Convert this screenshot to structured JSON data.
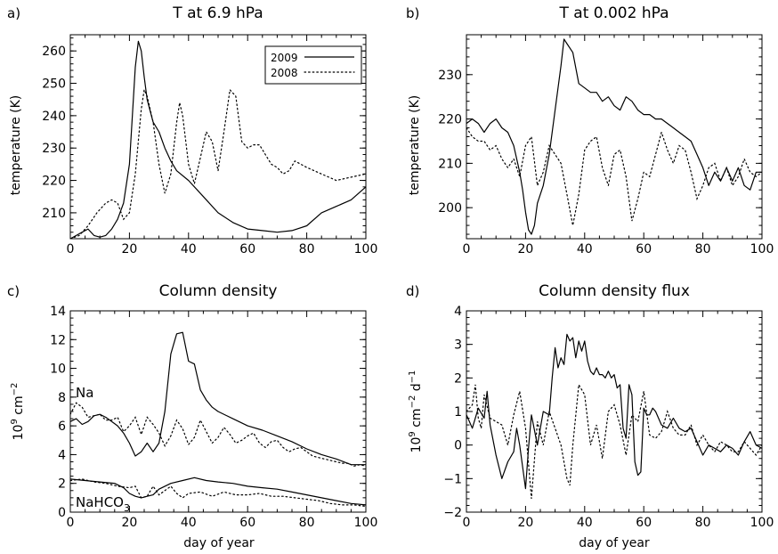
{
  "panels": [
    {
      "label": "a)",
      "title": "T at 6.9 hPa",
      "xlabel": "",
      "ylabel": "temperature (K)",
      "ylabel_sup": "",
      "ylabel_rest": "",
      "xticks": [
        "0",
        "20",
        "40",
        "60",
        "80",
        "100"
      ],
      "yticks": [
        "210",
        "220",
        "230",
        "240",
        "250",
        "260"
      ]
    },
    {
      "label": "b)",
      "title": "T at 0.002 hPa",
      "xlabel": "",
      "ylabel": "temperature (K)",
      "ylabel_sup": "",
      "ylabel_rest": "",
      "xticks": [
        "0",
        "20",
        "40",
        "60",
        "80",
        "100"
      ],
      "yticks": [
        "200",
        "210",
        "220",
        "230"
      ]
    },
    {
      "label": "c)",
      "title": "Column density",
      "xlabel": "day of year",
      "ylabel": "10",
      "ylabel_sup": "9",
      "ylabel_rest": " cm",
      "ylabel_sup2": "−2",
      "xticks": [
        "0",
        "20",
        "40",
        "60",
        "80",
        "100"
      ],
      "yticks": [
        "0",
        "2",
        "4",
        "6",
        "8",
        "10",
        "12",
        "14"
      ],
      "annotations": [
        {
          "text": "Na"
        },
        {
          "text": "NaHCO",
          "sub": "3"
        }
      ]
    },
    {
      "label": "d)",
      "title": "Column density flux",
      "xlabel": "day of year",
      "ylabel": "10",
      "ylabel_sup": "9",
      "ylabel_rest": " cm",
      "ylabel_sup2": "−2",
      "ylabel_rest2": " d",
      "ylabel_sup3": "−1",
      "xticks": [
        "0",
        "20",
        "40",
        "60",
        "80",
        "100"
      ],
      "yticks": [
        "−2",
        "−1",
        "0",
        "1",
        "2",
        "3",
        "4"
      ]
    }
  ],
  "legend": {
    "entries": [
      {
        "name": "2009",
        "style": "solid"
      },
      {
        "name": "2008",
        "style": "dotted"
      }
    ],
    "position": "top-right of panel a"
  },
  "chart_data": [
    {
      "type": "line",
      "title": "T at 6.9 hPa",
      "ylabel": "temperature (K)",
      "xlim": [
        0,
        100
      ],
      "ylim": [
        202,
        265
      ],
      "series": [
        {
          "name": "2009",
          "style": "solid",
          "x": [
            0,
            2,
            4,
            6,
            8,
            10,
            12,
            14,
            16,
            18,
            20,
            21,
            22,
            23,
            24,
            25,
            26,
            28,
            30,
            32,
            34,
            36,
            40,
            45,
            50,
            55,
            60,
            65,
            70,
            75,
            80,
            85,
            90,
            95,
            100
          ],
          "y": [
            202,
            203,
            204,
            205,
            203,
            202.5,
            203,
            205,
            208,
            213,
            225,
            240,
            255,
            263,
            260,
            252,
            245,
            238,
            235,
            230,
            226,
            223,
            220,
            215,
            210,
            207,
            205,
            204.5,
            204,
            204.5,
            206,
            210,
            212,
            214,
            218
          ]
        },
        {
          "name": "2008",
          "style": "dotted",
          "x": [
            0,
            3,
            6,
            9,
            12,
            14,
            16,
            18,
            20,
            22,
            24,
            25,
            26,
            28,
            30,
            32,
            34,
            36,
            37,
            38,
            40,
            42,
            44,
            46,
            48,
            50,
            52,
            54,
            56,
            58,
            60,
            62,
            64,
            66,
            68,
            70,
            72,
            74,
            76,
            78,
            80,
            85,
            90,
            95,
            100
          ],
          "y": [
            202,
            203,
            206,
            210,
            213,
            214,
            213,
            208,
            210,
            222,
            242,
            248,
            246,
            238,
            225,
            216,
            222,
            238,
            244,
            240,
            225,
            219,
            227,
            235,
            232,
            223,
            235,
            248,
            246,
            232,
            230,
            231,
            231,
            228,
            225,
            224,
            222,
            223,
            226,
            225,
            224,
            222,
            220,
            221,
            222
          ]
        }
      ]
    },
    {
      "type": "line",
      "title": "T at 0.002 hPa",
      "ylabel": "temperature (K)",
      "xlim": [
        0,
        100
      ],
      "ylim": [
        193,
        239
      ],
      "series": [
        {
          "name": "2009",
          "style": "solid",
          "x": [
            0,
            2,
            4,
            6,
            8,
            10,
            12,
            14,
            16,
            18,
            19,
            20,
            21,
            22,
            23,
            24,
            26,
            28,
            30,
            32,
            33,
            34,
            36,
            38,
            40,
            42,
            44,
            46,
            48,
            50,
            52,
            54,
            56,
            58,
            60,
            62,
            64,
            66,
            68,
            70,
            72,
            74,
            76,
            78,
            80,
            82,
            84,
            86,
            88,
            90,
            92,
            94,
            96,
            98,
            100
          ],
          "y": [
            219,
            220,
            219,
            217,
            219,
            220,
            218,
            217,
            214,
            208,
            204,
            199,
            195,
            194,
            196,
            201,
            205,
            212,
            222,
            232,
            238,
            237,
            235,
            228,
            227,
            226,
            226,
            224,
            225,
            223,
            222,
            225,
            224,
            222,
            221,
            221,
            220,
            220,
            219,
            218,
            217,
            216,
            215,
            212,
            209,
            205,
            208,
            206,
            209,
            206,
            209,
            205,
            204,
            208,
            208
          ]
        },
        {
          "name": "2008",
          "style": "dotted",
          "x": [
            0,
            2,
            4,
            6,
            8,
            10,
            12,
            14,
            16,
            18,
            20,
            22,
            24,
            26,
            28,
            30,
            32,
            34,
            36,
            38,
            40,
            42,
            44,
            46,
            48,
            50,
            52,
            54,
            56,
            58,
            60,
            62,
            64,
            66,
            68,
            70,
            72,
            74,
            76,
            78,
            80,
            82,
            84,
            86,
            88,
            90,
            92,
            94,
            96,
            98,
            100
          ],
          "y": [
            218,
            216,
            215,
            215,
            213,
            214,
            211,
            209,
            211,
            207,
            214,
            216,
            205,
            208,
            214,
            212,
            210,
            203,
            196,
            203,
            213,
            215,
            216,
            209,
            205,
            212,
            213,
            207,
            197,
            202,
            208,
            207,
            212,
            217,
            213,
            210,
            214,
            213,
            208,
            202,
            205,
            209,
            210,
            206,
            209,
            205,
            207,
            211,
            208,
            207,
            208
          ]
        }
      ]
    },
    {
      "type": "line",
      "title": "Column density",
      "ylabel": "10^9 cm^-2",
      "xlabel": "day of year",
      "xlim": [
        0,
        100
      ],
      "ylim": [
        0,
        14
      ],
      "series": [
        {
          "name": "Na 2009",
          "style": "solid",
          "x": [
            0,
            2,
            4,
            6,
            8,
            10,
            12,
            14,
            16,
            18,
            20,
            22,
            24,
            26,
            28,
            30,
            32,
            34,
            36,
            38,
            40,
            42,
            44,
            46,
            48,
            50,
            55,
            60,
            65,
            70,
            75,
            80,
            85,
            90,
            95,
            100
          ],
          "y": [
            6.3,
            6.5,
            6.1,
            6.3,
            6.7,
            6.8,
            6.6,
            6.3,
            6.0,
            5.5,
            4.8,
            3.9,
            4.2,
            4.8,
            4.2,
            4.8,
            7.0,
            11.0,
            12.4,
            12.5,
            10.5,
            10.3,
            8.5,
            7.8,
            7.3,
            7.0,
            6.5,
            6.0,
            5.7,
            5.3,
            4.9,
            4.4,
            4.0,
            3.7,
            3.3,
            3.3
          ]
        },
        {
          "name": "Na 2008",
          "style": "dotted",
          "x": [
            0,
            2,
            4,
            6,
            8,
            10,
            12,
            14,
            16,
            18,
            20,
            22,
            24,
            26,
            28,
            30,
            32,
            34,
            36,
            38,
            40,
            42,
            44,
            46,
            48,
            50,
            52,
            54,
            56,
            58,
            60,
            62,
            64,
            66,
            68,
            70,
            72,
            74,
            76,
            78,
            80,
            82,
            84,
            86,
            88,
            90,
            92,
            94,
            96,
            98,
            100
          ],
          "y": [
            6.8,
            7.6,
            7.3,
            6.6,
            6.7,
            6.8,
            6.4,
            6.4,
            6.6,
            5.6,
            6.0,
            6.6,
            5.4,
            6.6,
            6.1,
            5.5,
            4.6,
            5.3,
            6.4,
            5.8,
            4.7,
            5.2,
            6.4,
            5.6,
            4.8,
            5.2,
            5.9,
            5.4,
            4.8,
            5.0,
            5.3,
            5.5,
            4.8,
            4.5,
            4.9,
            5.0,
            4.5,
            4.2,
            4.4,
            4.5,
            4.2,
            3.9,
            3.8,
            3.7,
            3.6,
            3.5,
            3.4,
            3.4,
            3.2,
            3.3,
            3.2
          ]
        },
        {
          "name": "NaHCO3 2009",
          "style": "solid",
          "x": [
            0,
            5,
            10,
            15,
            18,
            20,
            22,
            24,
            26,
            28,
            30,
            34,
            38,
            42,
            46,
            50,
            55,
            60,
            65,
            70,
            75,
            80,
            85,
            90,
            95,
            100
          ],
          "y": [
            2.3,
            2.2,
            2.1,
            2.0,
            1.7,
            1.3,
            1.1,
            1.0,
            1.1,
            1.2,
            1.6,
            2.0,
            2.2,
            2.4,
            2.2,
            2.1,
            2.0,
            1.8,
            1.7,
            1.6,
            1.4,
            1.2,
            1.0,
            0.8,
            0.6,
            0.5
          ]
        },
        {
          "name": "NaHCO3 2008",
          "style": "dotted",
          "x": [
            0,
            4,
            8,
            12,
            16,
            20,
            22,
            24,
            26,
            28,
            30,
            32,
            34,
            36,
            38,
            40,
            44,
            48,
            52,
            56,
            60,
            64,
            68,
            72,
            76,
            80,
            84,
            88,
            92,
            96,
            100
          ],
          "y": [
            2.2,
            2.3,
            2.1,
            2.0,
            1.8,
            1.7,
            1.8,
            1.0,
            1.1,
            1.8,
            1.2,
            1.5,
            1.8,
            1.3,
            1.0,
            1.3,
            1.4,
            1.1,
            1.4,
            1.2,
            1.2,
            1.3,
            1.1,
            1.1,
            1.0,
            0.9,
            0.8,
            0.6,
            0.5,
            0.5,
            0.4
          ]
        }
      ]
    },
    {
      "type": "line",
      "title": "Column density flux",
      "ylabel": "10^9 cm^-2 d^-1",
      "xlabel": "day of year",
      "xlim": [
        0,
        100
      ],
      "ylim": [
        -2,
        4
      ],
      "series": [
        {
          "name": "2009",
          "style": "solid",
          "x": [
            0,
            2,
            4,
            6,
            7,
            8,
            10,
            12,
            14,
            16,
            17,
            18,
            20,
            21,
            22,
            24,
            26,
            28,
            29,
            30,
            31,
            32,
            33,
            34,
            35,
            36,
            37,
            38,
            39,
            40,
            41,
            42,
            43,
            44,
            45,
            46,
            47,
            48,
            49,
            50,
            51,
            52,
            53,
            54,
            55,
            56,
            57,
            58,
            59,
            60,
            61,
            62,
            63,
            64,
            66,
            68,
            70,
            72,
            74,
            76,
            78,
            80,
            82,
            84,
            86,
            88,
            90,
            92,
            94,
            96,
            98,
            100
          ],
          "y": [
            0.9,
            0.5,
            1.1,
            0.8,
            1.6,
            0.6,
            -0.3,
            -1.0,
            -0.5,
            -0.2,
            0.5,
            0.0,
            -1.3,
            -0.1,
            0.9,
            0.0,
            1.0,
            0.9,
            2.0,
            2.9,
            2.3,
            2.6,
            2.4,
            3.3,
            3.1,
            3.2,
            2.6,
            3.1,
            2.8,
            3.1,
            2.5,
            2.2,
            2.1,
            2.3,
            2.1,
            2.1,
            2.0,
            2.2,
            2.0,
            2.1,
            1.7,
            1.8,
            0.5,
            0.2,
            1.8,
            1.5,
            -0.5,
            -0.9,
            -0.8,
            1.1,
            0.9,
            0.9,
            1.1,
            1.0,
            0.6,
            0.5,
            0.8,
            0.5,
            0.4,
            0.5,
            0.1,
            -0.3,
            0.0,
            -0.1,
            -0.2,
            0.0,
            -0.1,
            -0.3,
            0.1,
            0.4,
            0.0,
            -0.1
          ]
        },
        {
          "name": "2008",
          "style": "dotted",
          "x": [
            0,
            2,
            3,
            4,
            5,
            6,
            8,
            10,
            12,
            14,
            16,
            18,
            20,
            22,
            24,
            26,
            28,
            30,
            32,
            34,
            35,
            36,
            38,
            40,
            42,
            44,
            46,
            48,
            50,
            52,
            54,
            56,
            58,
            60,
            62,
            64,
            66,
            68,
            70,
            72,
            74,
            76,
            78,
            80,
            82,
            84,
            86,
            88,
            90,
            92,
            94,
            96,
            98,
            100
          ],
          "y": [
            1.0,
            1.2,
            1.8,
            0.8,
            0.5,
            1.5,
            0.8,
            0.7,
            0.6,
            0.0,
            0.9,
            1.6,
            0.5,
            -1.6,
            0.7,
            0.0,
            1.0,
            0.5,
            0.0,
            -1.0,
            -1.2,
            0.0,
            1.8,
            1.5,
            0.0,
            0.6,
            -0.4,
            1.0,
            1.2,
            0.6,
            -0.3,
            0.9,
            0.7,
            1.6,
            0.3,
            0.2,
            0.4,
            1.0,
            0.5,
            0.3,
            0.3,
            0.6,
            0.0,
            0.3,
            0.0,
            -0.2,
            0.1,
            0.0,
            -0.2,
            -0.2,
            0.1,
            -0.1,
            -0.3,
            0.0
          ]
        }
      ]
    }
  ]
}
